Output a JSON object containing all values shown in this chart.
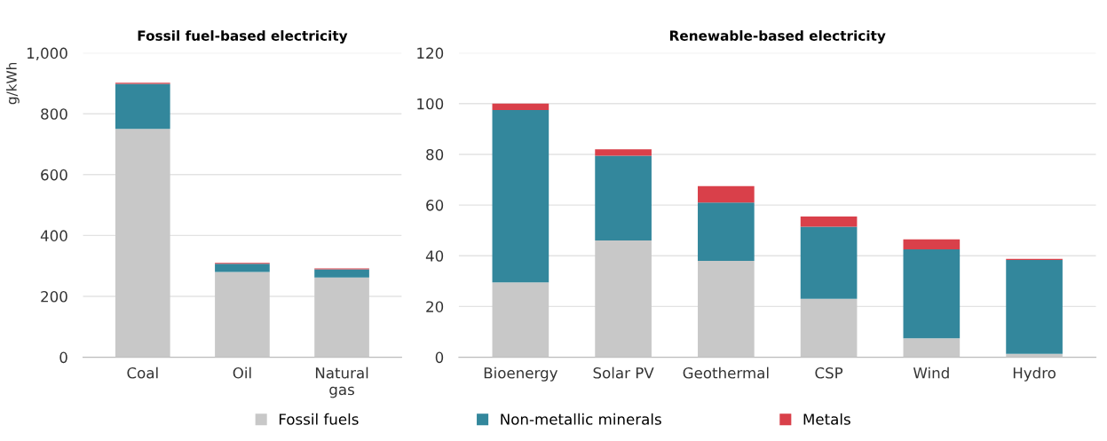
{
  "chart_data": [
    {
      "type": "bar",
      "title": "Fossil fuel-based electricity",
      "ylabel": "g/kWh",
      "categories": [
        "Coal",
        "Oil",
        "Natural\ngas"
      ],
      "stacked": true,
      "ylim": [
        0,
        1000
      ],
      "yticks": [
        0,
        200,
        400,
        600,
        800,
        {
          "value": 1000,
          "label": "1,000"
        }
      ],
      "grid": "y",
      "legend": "bottom",
      "series": [
        {
          "name": "Fossil fuels",
          "color": "#c8c8c8",
          "values": [
            750,
            280,
            262
          ]
        },
        {
          "name": "Non-metallic minerals",
          "color": "#33879c",
          "values": [
            148,
            27,
            27
          ]
        },
        {
          "name": "Metals",
          "color": "#d9404a",
          "values": [
            4,
            3,
            3
          ]
        }
      ]
    },
    {
      "type": "bar",
      "title": "Renewable-based electricity",
      "categories": [
        "Bioenergy",
        "Solar PV",
        "Geothermal",
        "CSP",
        "Wind",
        "Hydro"
      ],
      "stacked": true,
      "ylim": [
        0,
        120
      ],
      "yticks": [
        0,
        20,
        40,
        60,
        80,
        100,
        120
      ],
      "grid": "y",
      "series": [
        {
          "color": "#c8c8c8",
          "values": [
            29.5,
            46,
            38,
            23,
            7.5,
            1.3
          ]
        },
        {
          "color": "#33879c",
          "values": [
            68,
            33.5,
            23,
            28.5,
            35,
            37
          ]
        },
        {
          "color": "#d9404a",
          "values": [
            2.5,
            2.5,
            6.5,
            4,
            4,
            0.5
          ]
        }
      ]
    }
  ]
}
